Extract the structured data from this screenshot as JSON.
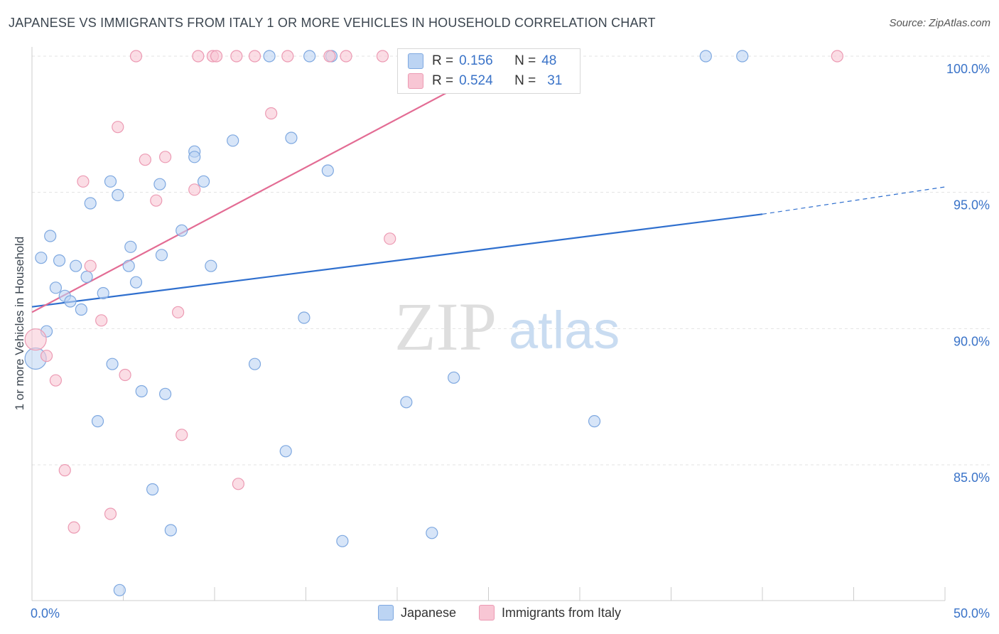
{
  "title": "JAPANESE VS IMMIGRANTS FROM ITALY 1 OR MORE VEHICLES IN HOUSEHOLD CORRELATION CHART",
  "source": "Source: ZipAtlas.com",
  "watermark": {
    "zip": "ZIP",
    "atlas": "atlas"
  },
  "colors": {
    "blue_fill": "#bcd4f3",
    "blue_stroke": "#7ea8e0",
    "blue_line": "#2f6fce",
    "pink_fill": "#f8c6d4",
    "pink_stroke": "#ec9ab3",
    "pink_line": "#e36c94",
    "axis_text": "#3a73c8",
    "grid": "#e3e3e3"
  },
  "legend_stats": [
    {
      "r_label": "R =",
      "r_value": "0.156",
      "n_label": "N =",
      "n_value": "48",
      "color": "#bcd4f3",
      "border": "#7ea8e0"
    },
    {
      "r_label": "R =",
      "r_value": "0.524",
      "n_label": "N =",
      "n_value": "31",
      "color": "#f8c6d4",
      "border": "#ec9ab3"
    }
  ],
  "chart_data": {
    "type": "scatter",
    "title": "JAPANESE VS IMMIGRANTS FROM ITALY 1 OR MORE VEHICLES IN HOUSEHOLD CORRELATION CHART",
    "xlabel": "",
    "ylabel": "1 or more Vehicles in Household",
    "xlim": [
      0,
      50
    ],
    "ylim": [
      80,
      100.5
    ],
    "x_tick_labels": [
      "0.0%",
      "50.0%"
    ],
    "y_ticks": [
      85,
      90,
      95,
      100
    ],
    "y_tick_labels": [
      "85.0%",
      "90.0%",
      "95.0%",
      "100.0%"
    ],
    "series": [
      {
        "name": "Japanese",
        "color": "#bcd4f3",
        "points": [
          [
            1.0,
            93.4
          ],
          [
            0.5,
            92.6
          ],
          [
            1.5,
            92.5
          ],
          [
            2.4,
            92.3
          ],
          [
            3.0,
            91.9
          ],
          [
            1.3,
            91.5
          ],
          [
            1.8,
            91.2
          ],
          [
            2.1,
            91.0
          ],
          [
            2.7,
            90.7
          ],
          [
            3.9,
            91.3
          ],
          [
            0.8,
            89.9
          ],
          [
            0.2,
            88.9
          ],
          [
            4.3,
            95.4
          ],
          [
            3.2,
            94.6
          ],
          [
            4.7,
            94.9
          ],
          [
            7.0,
            95.3
          ],
          [
            8.2,
            93.6
          ],
          [
            5.4,
            93.0
          ],
          [
            7.1,
            92.7
          ],
          [
            5.3,
            92.3
          ],
          [
            5.7,
            91.7
          ],
          [
            8.9,
            96.5
          ],
          [
            8.9,
            96.3
          ],
          [
            9.4,
            95.4
          ],
          [
            9.8,
            92.3
          ],
          [
            11.0,
            96.9
          ],
          [
            14.2,
            97.0
          ],
          [
            16.2,
            95.8
          ],
          [
            14.9,
            90.4
          ],
          [
            12.2,
            88.7
          ],
          [
            4.4,
            88.7
          ],
          [
            6.0,
            87.7
          ],
          [
            7.3,
            87.6
          ],
          [
            3.6,
            86.6
          ],
          [
            6.6,
            84.1
          ],
          [
            7.6,
            82.6
          ],
          [
            4.8,
            80.4
          ],
          [
            13.9,
            85.5
          ],
          [
            20.5,
            87.3
          ],
          [
            23.1,
            88.2
          ],
          [
            17.0,
            82.2
          ],
          [
            21.9,
            82.5
          ],
          [
            30.8,
            86.6
          ],
          [
            13.0,
            100.0
          ],
          [
            15.2,
            100.0
          ],
          [
            16.4,
            100.0
          ],
          [
            36.9,
            100.0
          ],
          [
            38.9,
            100.0
          ]
        ]
      },
      {
        "name": "Immigrants from Italy",
        "color": "#f8c6d4",
        "points": [
          [
            0.2,
            89.6
          ],
          [
            0.8,
            89.0
          ],
          [
            1.3,
            88.1
          ],
          [
            1.8,
            84.8
          ],
          [
            2.3,
            82.7
          ],
          [
            2.8,
            95.4
          ],
          [
            3.2,
            92.3
          ],
          [
            3.8,
            90.3
          ],
          [
            4.3,
            83.2
          ],
          [
            4.7,
            97.4
          ],
          [
            5.1,
            88.3
          ],
          [
            6.2,
            96.2
          ],
          [
            6.8,
            94.7
          ],
          [
            7.3,
            96.3
          ],
          [
            8.0,
            90.6
          ],
          [
            8.2,
            86.1
          ],
          [
            8.9,
            95.1
          ],
          [
            11.3,
            84.3
          ],
          [
            13.1,
            97.9
          ],
          [
            19.6,
            93.3
          ],
          [
            5.7,
            100.0
          ],
          [
            9.1,
            100.0
          ],
          [
            9.9,
            100.0
          ],
          [
            10.1,
            100.0
          ],
          [
            11.2,
            100.0
          ],
          [
            12.2,
            100.0
          ],
          [
            14.0,
            100.0
          ],
          [
            16.3,
            100.0
          ],
          [
            17.2,
            100.0
          ],
          [
            19.2,
            100.0
          ],
          [
            44.1,
            100.0
          ]
        ]
      }
    ],
    "trend_lines": [
      {
        "series": "Japanese",
        "x0": 0,
        "y0": 90.8,
        "x1": 40,
        "y1": 94.2,
        "dashed_to_x": 50,
        "dashed_to_y": 95.2
      },
      {
        "series": "Immigrants from Italy",
        "x0": 0,
        "y0": 90.6,
        "x1": 26.5,
        "y1": 100.0
      }
    ],
    "legend": [
      {
        "label": "Japanese",
        "color": "#bcd4f3",
        "border": "#7ea8e0"
      },
      {
        "label": "Immigrants from Italy",
        "color": "#f8c6d4",
        "border": "#ec9ab3"
      }
    ]
  }
}
